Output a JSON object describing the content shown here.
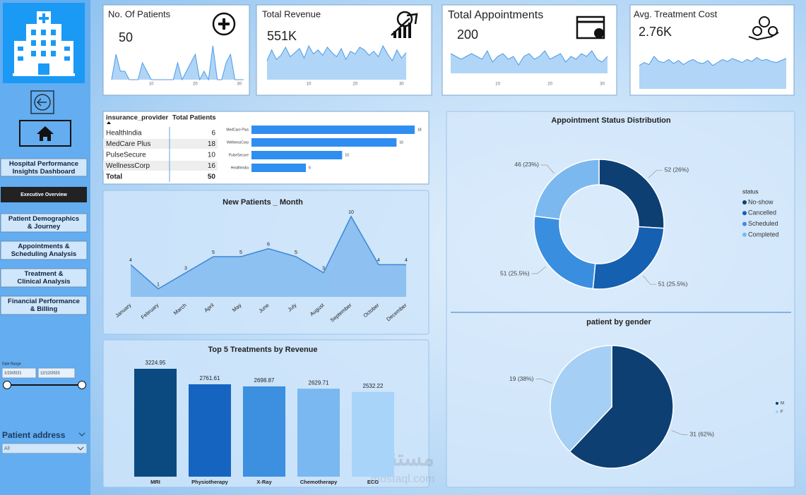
{
  "sidebar": {
    "nav": [
      "Hospital Performance Insights Dashboard",
      "Executive Overview",
      "Patient Demographics & Journey",
      "Appointments & Scheduling Analysis",
      "Treatment & Clinical Analysis",
      "Financial Performance & Billing"
    ],
    "date_range": {
      "label": "Date Range",
      "start": "1/23/2021",
      "end": "12/12/2023"
    },
    "patient_address": {
      "label": "Patient address",
      "value": "All"
    }
  },
  "kpis": [
    {
      "title": "No. Of Patients",
      "value": "50"
    },
    {
      "title": "Total Revenue",
      "value": "551K"
    },
    {
      "title": "Total Appointments",
      "value": "200"
    },
    {
      "title": "Avg. Treatment Cost",
      "value": "2.76K"
    }
  ],
  "table": {
    "columns": [
      "insurance_provider",
      "Total Patients"
    ],
    "rows": [
      [
        "HealthIndia",
        6
      ],
      [
        "MedCare Plus",
        18
      ],
      [
        "PulseSecure",
        10
      ],
      [
        "WellnessCorp",
        16
      ]
    ],
    "total": [
      "Total",
      50
    ]
  },
  "watermark": [
    "مستقل",
    "mostaql.com"
  ],
  "chart_data": [
    {
      "type": "area",
      "color": "#4a9be8",
      "x": [
        1,
        2,
        3,
        4,
        5,
        6,
        7,
        8,
        9,
        10,
        11,
        12,
        13,
        14,
        15,
        16,
        17,
        18,
        19,
        20,
        21,
        22,
        23,
        24,
        25,
        26,
        27,
        28,
        29,
        30,
        31
      ],
      "values": [
        0,
        3,
        1,
        1,
        0,
        0,
        0,
        2,
        1,
        0,
        0,
        0,
        0,
        0,
        0,
        2,
        0,
        1,
        2,
        3,
        0,
        1,
        0,
        4,
        0,
        0,
        2,
        3,
        0,
        0,
        0
      ],
      "xlim": [
        1,
        31
      ],
      "xticks": [
        10,
        20,
        30
      ]
    },
    {
      "type": "area",
      "color": "#4a9be8",
      "x": [
        1,
        2,
        3,
        4,
        5,
        6,
        7,
        8,
        9,
        10,
        11,
        12,
        13,
        14,
        15,
        16,
        17,
        18,
        19,
        20,
        21,
        22,
        23,
        24,
        25,
        26,
        27,
        28,
        29,
        30,
        31
      ],
      "values": [
        14000,
        22000,
        15000,
        18000,
        24000,
        17000,
        20000,
        23000,
        16000,
        25000,
        19000,
        22000,
        18000,
        24000,
        20000,
        17000,
        23000,
        15000,
        21000,
        19000,
        24000,
        22000,
        18000,
        21000,
        17000,
        25000,
        19000,
        14000,
        22000,
        16000,
        20000
      ],
      "xlim": [
        1,
        31
      ],
      "xticks": [
        10,
        20,
        30
      ]
    },
    {
      "type": "area",
      "color": "#4a9be8",
      "x": [
        1,
        2,
        3,
        4,
        5,
        6,
        7,
        8,
        9,
        10,
        11,
        12,
        13,
        14,
        15,
        16,
        17,
        18,
        19,
        20,
        21,
        22,
        23,
        24,
        25,
        26,
        27,
        28,
        29,
        30,
        31
      ],
      "values": [
        7,
        6,
        5,
        6,
        7,
        6,
        5,
        8,
        4,
        6,
        7,
        5,
        6,
        3,
        6,
        7,
        5,
        6,
        8,
        5,
        6,
        7,
        4,
        6,
        5,
        7,
        6,
        8,
        5,
        4,
        6
      ],
      "xlim": [
        1,
        31
      ],
      "xticks": [
        10,
        20,
        30
      ]
    },
    {
      "type": "area",
      "color": "#4a9be8",
      "x": [
        1,
        2,
        3,
        4,
        5,
        6,
        7,
        8,
        9,
        10,
        11,
        12,
        13,
        14,
        15,
        16,
        17,
        18,
        19,
        20,
        21,
        22,
        23,
        24,
        25,
        26,
        27,
        28,
        29,
        30,
        31
      ],
      "values": [
        2300,
        2600,
        2400,
        3200,
        2700,
        2600,
        2900,
        2500,
        2800,
        2400,
        2700,
        2900,
        2600,
        2500,
        2800,
        2300,
        2600,
        2900,
        2700,
        3000,
        2800,
        2600,
        2900,
        2700,
        3100,
        2800,
        2900,
        2700,
        2600,
        2800,
        3000
      ],
      "xlim": [
        1,
        31
      ]
    },
    {
      "type": "bar",
      "orientation": "horizontal",
      "color": "#2f8ef0",
      "categories": [
        "MedCare Plus",
        "WellnessCorp",
        "PulseSecure",
        "HealthIndia"
      ],
      "values": [
        18,
        16,
        10,
        6
      ]
    },
    {
      "type": "area",
      "title": "New Patients _ Month",
      "color": "#3d86d8",
      "categories": [
        "January",
        "February",
        "March",
        "April",
        "May",
        "June",
        "July",
        "August",
        "September",
        "October",
        "December"
      ],
      "values": [
        4,
        1,
        3,
        5,
        5,
        6,
        5,
        3,
        10,
        4,
        4
      ]
    },
    {
      "type": "bar",
      "title": "Top 5 Treatments by Revenue",
      "categories": [
        "MRI",
        "Physiotherapy",
        "X-Ray",
        "Chemotherapy",
        "ECG"
      ],
      "values": [
        3224.95,
        2761.61,
        2698.87,
        2629.71,
        2532.22
      ],
      "colors": [
        "#0b4a80",
        "#1565c0",
        "#3d8fe0",
        "#79b8f0",
        "#a8d4fa"
      ]
    },
    {
      "type": "donut",
      "title": "Appointment Status Distribution",
      "legend_title": "status",
      "categories": [
        "No-show",
        "Cancelled",
        "Scheduled",
        "Completed"
      ],
      "values": [
        52,
        51,
        51,
        46
      ],
      "value_labels": [
        "52 (26%)",
        "51 (25.5%)",
        "51 (25.5%)",
        "46 (23%)"
      ],
      "colors": [
        "#0d3f73",
        "#1560b0",
        "#3a8ee0",
        "#7ab8ef"
      ]
    },
    {
      "type": "pie",
      "title": "patient by gender",
      "categories": [
        "M",
        "F"
      ],
      "values": [
        31,
        19
      ],
      "value_labels": [
        "31 (62%)",
        "19 (38%)"
      ],
      "colors": [
        "#0d3f73",
        "#a5cff5"
      ]
    }
  ]
}
